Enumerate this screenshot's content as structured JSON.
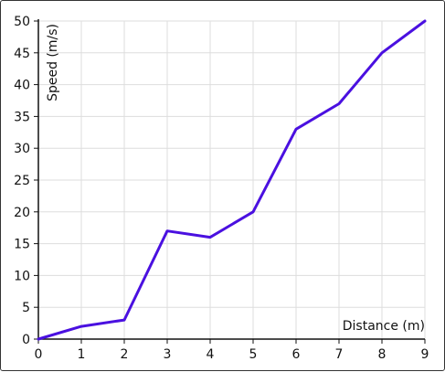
{
  "chart_data": {
    "type": "line",
    "title": "",
    "xlabel": "Distance (m)",
    "ylabel": "Speed (m/s)",
    "xlim": [
      0,
      9
    ],
    "ylim": [
      0,
      50
    ],
    "xticks": [
      0,
      1,
      2,
      3,
      4,
      5,
      6,
      7,
      8,
      9
    ],
    "yticks": [
      0,
      5,
      10,
      15,
      20,
      25,
      30,
      35,
      40,
      45,
      50
    ],
    "grid": true,
    "series": [
      {
        "color": "#4a10e0",
        "x": [
          0,
          1,
          2,
          3,
          4,
          5,
          6,
          7,
          8,
          9
        ],
        "y": [
          0,
          2,
          3,
          17,
          16,
          20,
          33,
          37,
          45,
          50
        ]
      }
    ]
  }
}
